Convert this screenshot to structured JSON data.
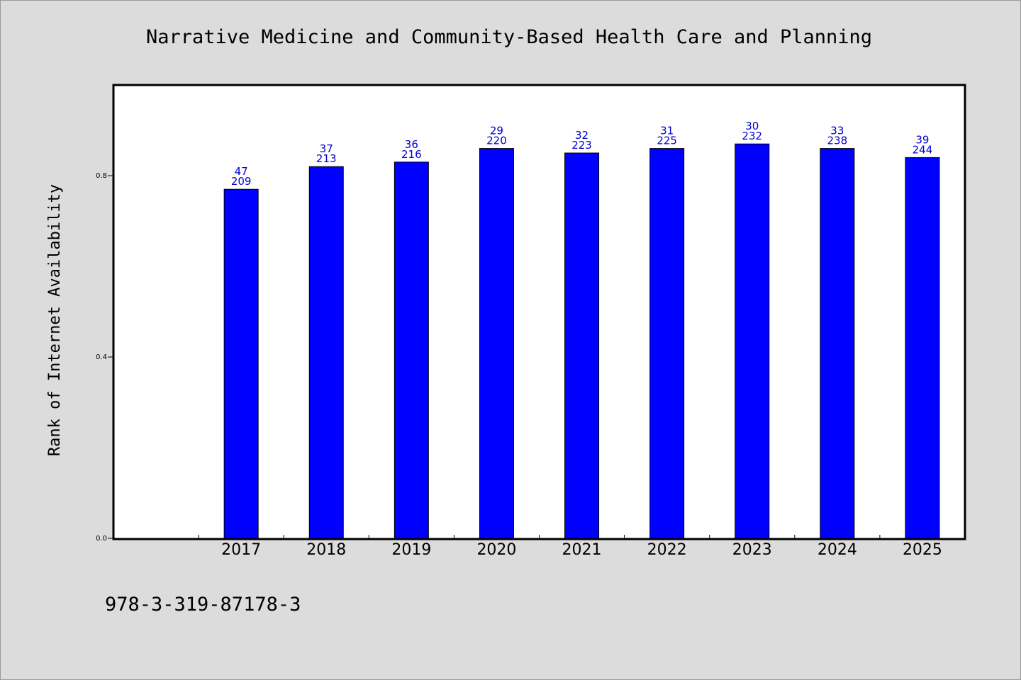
{
  "chart_data": {
    "type": "bar",
    "title": "Narrative Medicine and Community-Based Health Care and Planning",
    "xlabel": "",
    "ylabel": "Rank of Internet Availability",
    "categories": [
      "2017",
      "2018",
      "2019",
      "2020",
      "2021",
      "2022",
      "2023",
      "2024",
      "2025"
    ],
    "values": [
      0.77,
      0.82,
      0.83,
      0.86,
      0.85,
      0.86,
      0.87,
      0.86,
      0.84
    ],
    "labels_top": [
      "47",
      "37",
      "36",
      "29",
      "32",
      "31",
      "30",
      "33",
      "39"
    ],
    "labels_bottom": [
      "209",
      "213",
      "216",
      "220",
      "223",
      "225",
      "232",
      "238",
      "244"
    ],
    "ylim": [
      0.0,
      1.0
    ],
    "yticks": [
      "0.0",
      "0.4",
      "0.8"
    ],
    "bar_color": "#0000ff",
    "label_color": "#0000cc",
    "grid": false,
    "legend": "none"
  },
  "footer_text": "978-3-319-87178-3"
}
